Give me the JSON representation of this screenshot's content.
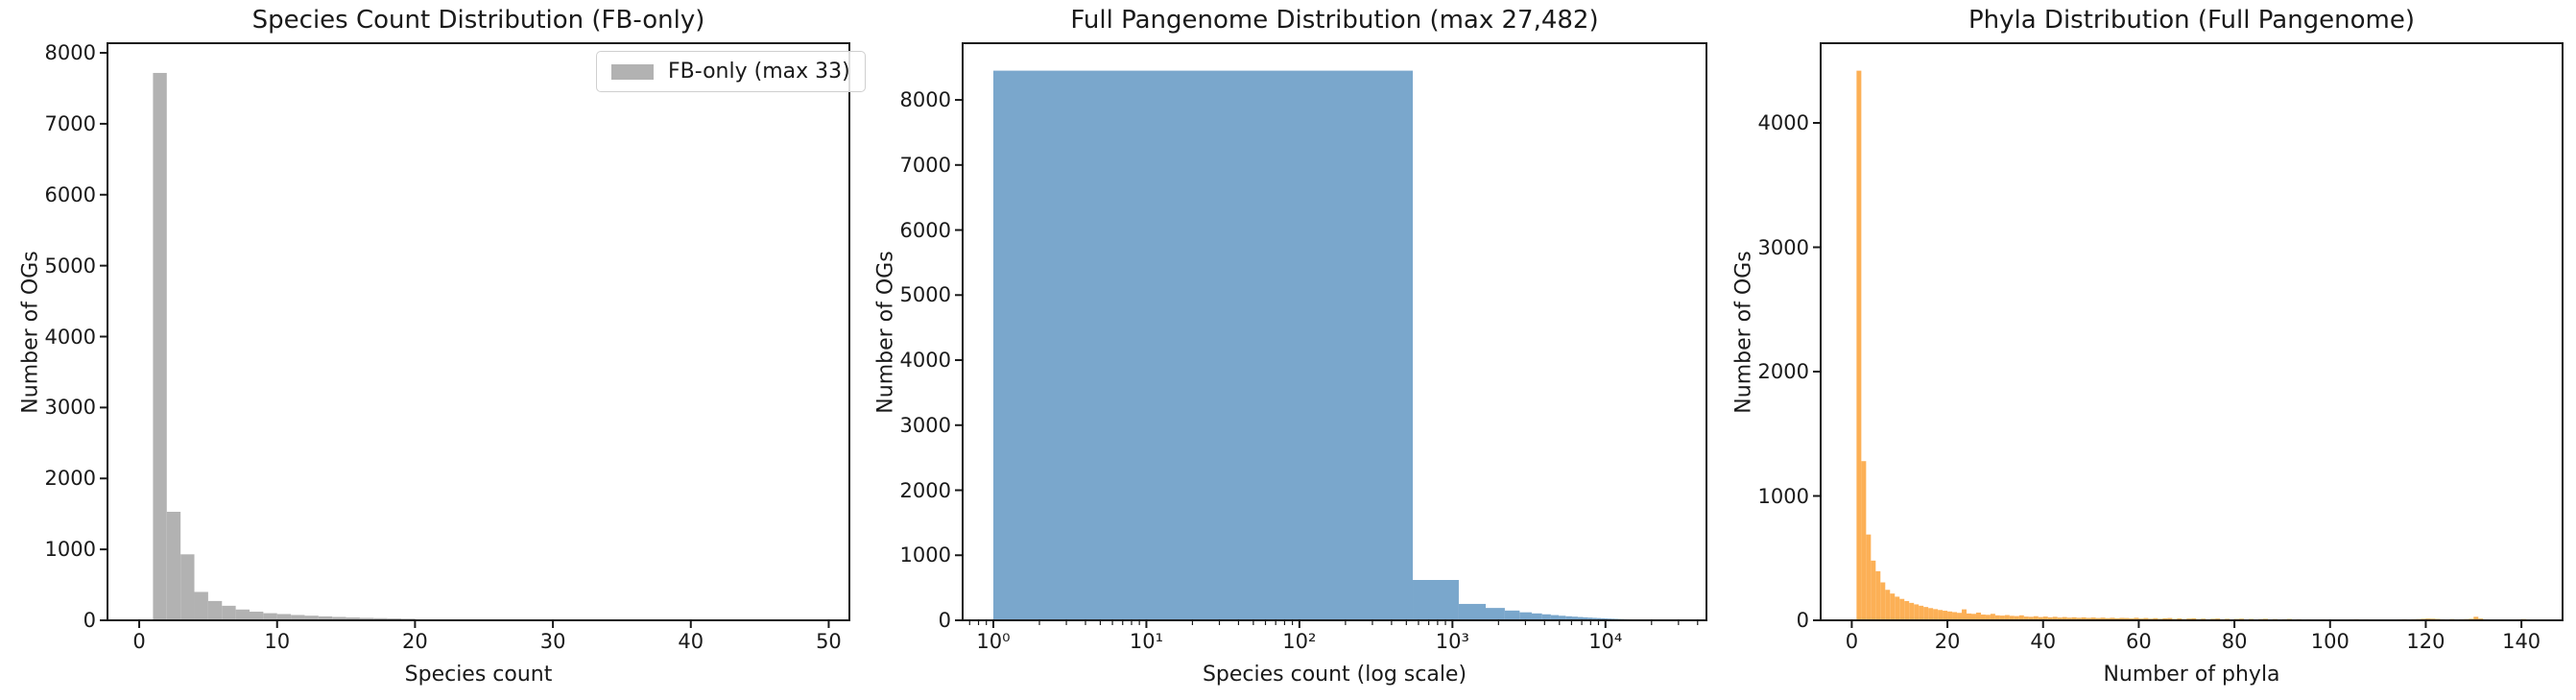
{
  "figure": {
    "background": "#ffffff",
    "text_color": "#1a1a1a"
  },
  "chart_data": [
    {
      "type": "bar",
      "subtype": "histogram",
      "title": "Species Count Distribution (FB-only)",
      "xlabel": "Species count",
      "ylabel": "Number of OGs",
      "legend": {
        "label": "FB-only (max 33)",
        "position": "upper right"
      },
      "color": "#b2b2b2",
      "xscale": "linear",
      "grid": false,
      "bin_start": 1,
      "bin_width": 1,
      "values": [
        7717,
        1530,
        930,
        400,
        272,
        205,
        152,
        122,
        100,
        88,
        75,
        65,
        55,
        47,
        40,
        34,
        30,
        26,
        22,
        12,
        9,
        8,
        7,
        6,
        5,
        4,
        4,
        3,
        3,
        2,
        2,
        2,
        2
      ],
      "xticks": [
        0,
        10,
        20,
        30,
        40,
        50
      ],
      "yticks": [
        0,
        1000,
        2000,
        3000,
        4000,
        5000,
        6000,
        7000,
        8000
      ],
      "xlim": [
        -2.3,
        51.5
      ],
      "ylim": [
        0,
        8136
      ]
    },
    {
      "type": "bar",
      "subtype": "histogram",
      "title": "Full Pangenome Distribution (max 27,482)",
      "xlabel": "Species count (log scale)",
      "ylabel": "Number of OGs",
      "legend": null,
      "color": "#7aa7cc",
      "xscale": "log",
      "grid": false,
      "bin_start": 1,
      "bin_width": 549.62,
      "values": [
        8450,
        620,
        252,
        190,
        150,
        123,
        106,
        92,
        80,
        70,
        62,
        56,
        50,
        45,
        41,
        37,
        34,
        31,
        28,
        26,
        24,
        22,
        20,
        19,
        17,
        16,
        15,
        14,
        13,
        12,
        11,
        11,
        10,
        9,
        9,
        8,
        8,
        7,
        7,
        6,
        6,
        5,
        5,
        5,
        4,
        4,
        4,
        3,
        3,
        3
      ],
      "xticks": [
        1,
        10,
        100,
        1000,
        10000
      ],
      "xtick_labels": [
        "10⁰",
        "10¹",
        "10²",
        "10³",
        "10⁴"
      ],
      "yticks": [
        0,
        1000,
        2000,
        3000,
        4000,
        5000,
        6000,
        7000,
        8000
      ],
      "xlim": [
        0.63,
        45700
      ],
      "ylim": [
        0,
        8872
      ]
    },
    {
      "type": "bar",
      "subtype": "histogram",
      "title": "Phyla Distribution (Full Pangenome)",
      "xlabel": "Number of phyla",
      "ylabel": "Number of OGs",
      "legend": null,
      "color": "#fcb056",
      "xscale": "linear",
      "grid": false,
      "bin_start": 1,
      "bin_width": 1,
      "values": [
        4420,
        1280,
        690,
        480,
        395,
        305,
        245,
        215,
        190,
        172,
        155,
        140,
        128,
        117,
        107,
        98,
        90,
        83,
        77,
        71,
        66,
        60,
        88,
        55,
        52,
        62,
        46,
        44,
        52,
        40,
        38,
        42,
        36,
        34,
        40,
        30,
        28,
        33,
        26,
        30,
        24,
        28,
        22,
        26,
        21,
        24,
        20,
        23,
        19,
        22,
        18,
        21,
        17,
        20,
        16,
        19,
        18,
        15,
        20,
        14,
        18,
        13,
        17,
        12,
        16,
        18,
        11,
        15,
        10,
        14,
        16,
        10,
        13,
        9,
        12,
        14,
        9,
        12,
        8,
        11,
        13,
        8,
        11,
        7,
        10,
        12,
        7,
        10,
        6,
        9,
        11,
        6,
        9,
        5,
        8,
        0,
        7,
        8,
        5,
        7,
        0,
        6,
        0,
        8,
        9,
        7,
        8,
        6,
        0,
        5,
        0,
        0,
        6,
        8,
        9,
        8,
        9,
        10,
        12,
        14,
        13,
        11,
        9,
        8,
        10,
        8,
        9,
        10,
        12,
        28,
        14,
        8,
        0,
        6,
        5,
        6,
        0,
        4,
        8,
        10,
        7,
        5
      ],
      "xticks": [
        0,
        20,
        40,
        60,
        80,
        100,
        120,
        140
      ],
      "yticks": [
        0,
        1000,
        2000,
        3000,
        4000
      ],
      "xlim": [
        -6.5,
        148.6
      ],
      "ylim": [
        0,
        4641
      ]
    }
  ]
}
